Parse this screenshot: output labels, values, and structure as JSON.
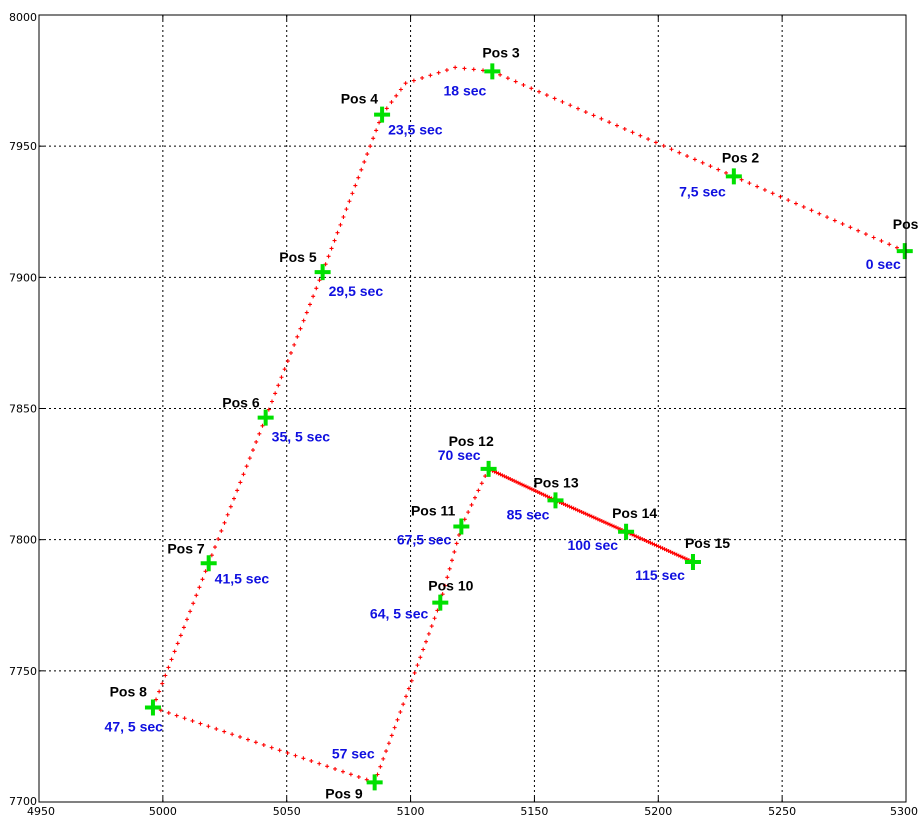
{
  "chart_data": {
    "type": "scatter",
    "title": "",
    "xlabel": "",
    "ylabel": "",
    "xlim": [
      4950,
      5300
    ],
    "ylim": [
      7700,
      8000
    ],
    "grid": true,
    "x_ticks": [
      "4950",
      "5000",
      "5050",
      "5100",
      "5150",
      "5200",
      "5250",
      "5300"
    ],
    "y_ticks": [
      "7700",
      "7750",
      "7800",
      "7850",
      "7900",
      "7950",
      "8000"
    ],
    "colors": {
      "path": "#ff0000",
      "marker": "#00e000",
      "pos_label": "#000000",
      "time_label": "#1010e0",
      "grid": "#000000"
    },
    "path": {
      "points": [
        [
          5299.5,
          7910
        ],
        [
          5230.5,
          7938.5
        ],
        [
          5133,
          7978.5
        ],
        [
          5118,
          7980
        ],
        [
          5098,
          7974
        ],
        [
          5088.5,
          7962
        ],
        [
          5064.5,
          7902
        ],
        [
          5041.5,
          7846.5
        ],
        [
          5018.5,
          7791
        ],
        [
          4996,
          7736
        ],
        [
          5085.5,
          7707.5
        ],
        [
          5112,
          7776
        ],
        [
          5120.5,
          7805
        ],
        [
          5131.5,
          7827
        ],
        [
          5158.5,
          7815
        ],
        [
          5187,
          7803
        ],
        [
          5214,
          7791.5
        ]
      ],
      "dense_segment_from_index": 13
    },
    "positions": [
      {
        "name": "Pos",
        "x": 5299.5,
        "y": 7910,
        "time": "0 sec"
      },
      {
        "name": "Pos 2",
        "x": 5230.5,
        "y": 7938.5,
        "time": "7,5 sec"
      },
      {
        "name": "Pos 3",
        "x": 5133,
        "y": 7978.5,
        "time": "18 sec"
      },
      {
        "name": "Pos 4",
        "x": 5088.5,
        "y": 7962,
        "time": "23,5 sec"
      },
      {
        "name": "Pos 5",
        "x": 5064.5,
        "y": 7902,
        "time": "29,5 sec"
      },
      {
        "name": "Pos 6",
        "x": 5041.5,
        "y": 7846.5,
        "time": "35, 5 sec"
      },
      {
        "name": "Pos 7",
        "x": 5018.5,
        "y": 7791,
        "time": "41,5 sec"
      },
      {
        "name": "Pos 8",
        "x": 4996,
        "y": 7736,
        "time": "47, 5 sec"
      },
      {
        "name": "Pos 9",
        "x": 5085.5,
        "y": 7707.5,
        "time": "57 sec"
      },
      {
        "name": "Pos 10",
        "x": 5112,
        "y": 7776,
        "time": "64, 5 sec"
      },
      {
        "name": "Pos 11",
        "x": 5120.5,
        "y": 7805,
        "time": "67,5 sec"
      },
      {
        "name": "Pos 12",
        "x": 5131.5,
        "y": 7827,
        "time": "70 sec"
      },
      {
        "name": "Pos 13",
        "x": 5158.5,
        "y": 7815,
        "time": "85 sec"
      },
      {
        "name": "Pos 14",
        "x": 5187,
        "y": 7803,
        "time": "100 sec"
      },
      {
        "name": "Pos 15",
        "x": 5214,
        "y": 7791.5,
        "time": "115 sec"
      }
    ]
  }
}
